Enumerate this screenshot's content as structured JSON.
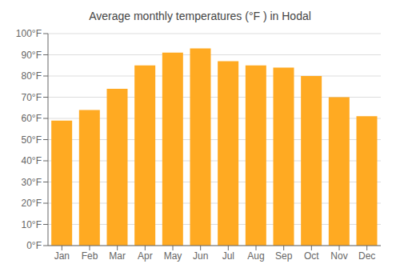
{
  "chart_data": {
    "type": "bar",
    "title": "Average monthly temperatures (°F ) in Hodal",
    "categories": [
      "Jan",
      "Feb",
      "Mar",
      "Apr",
      "May",
      "Jun",
      "Jul",
      "Aug",
      "Sep",
      "Oct",
      "Nov",
      "Dec"
    ],
    "values": [
      59,
      64,
      74,
      85,
      91,
      93,
      87,
      85,
      84,
      80,
      70,
      61
    ],
    "color": "#FFAA22",
    "ylim": [
      0,
      100
    ],
    "yticks": [
      {
        "value": 0,
        "label": "0°F"
      },
      {
        "value": 10,
        "label": "10°F"
      },
      {
        "value": 20,
        "label": "20°F"
      },
      {
        "value": 30,
        "label": "30°F"
      },
      {
        "value": 40,
        "label": "40°F"
      },
      {
        "value": 50,
        "label": "50°F"
      },
      {
        "value": 60,
        "label": "60°F"
      },
      {
        "value": 70,
        "label": "70°F"
      },
      {
        "value": 80,
        "label": "80°F"
      },
      {
        "value": 90,
        "label": "90°F"
      },
      {
        "value": 100,
        "label": "100°F"
      }
    ],
    "grid": true
  }
}
